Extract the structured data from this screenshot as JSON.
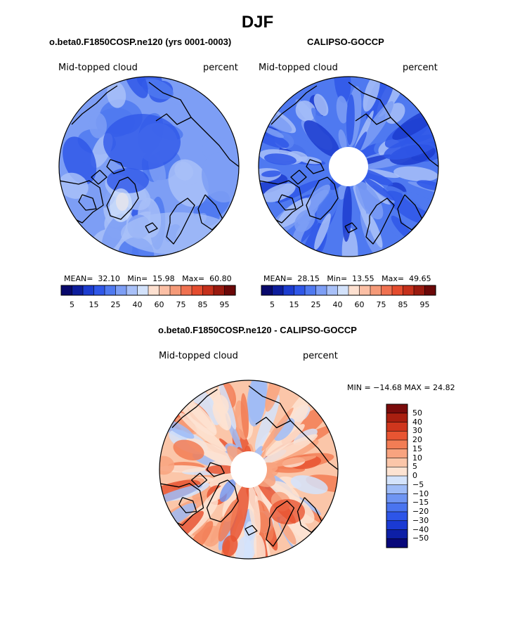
{
  "title": "DJF",
  "panels": [
    {
      "id": "model",
      "title": "o.beta0.F1850COSP.ne120 (yrs 0001-0003)",
      "left_label": "Mid-topped cloud",
      "right_label": "percent",
      "stats": {
        "mean_label": "MEAN=",
        "mean": "32.10",
        "min_label": "Min=",
        "min": "15.98",
        "max_label": "Max=",
        "max": "60.80"
      },
      "colorbar_ticks": [
        "5",
        "15",
        "25",
        "40",
        "60",
        "75",
        "85",
        "95"
      ]
    },
    {
      "id": "obs",
      "title": "CALIPSO-GOCCP",
      "left_label": "Mid-topped cloud",
      "right_label": "percent",
      "stats": {
        "mean_label": "MEAN=",
        "mean": "28.15",
        "min_label": "Min=",
        "min": "13.55",
        "max_label": "Max=",
        "max": "49.65"
      },
      "colorbar_ticks": [
        "5",
        "15",
        "25",
        "40",
        "60",
        "75",
        "85",
        "95"
      ]
    },
    {
      "id": "diff",
      "title": "o.beta0.F1850COSP.ne120 - CALIPSO-GOCCP",
      "left_label": "Mid-topped cloud",
      "right_label": "percent",
      "minmax_text": "MIN = −14.68 MAX =  24.82",
      "colorbar_ticks": [
        "50",
        "40",
        "30",
        "20",
        "15",
        "10",
        "5",
        "0",
        "−5",
        "−10",
        "−15",
        "−20",
        "−30",
        "−40",
        "−50"
      ]
    }
  ],
  "chart_data": [
    {
      "type": "heatmap",
      "projection": "north polar stereographic",
      "title": "o.beta0.F1850COSP.ne120 (yrs 0001-0003)",
      "variable": "Mid-topped cloud",
      "units": "percent",
      "mean": 32.1,
      "min": 15.98,
      "max": 60.8,
      "contour_levels": [
        5,
        10,
        15,
        20,
        25,
        30,
        40,
        50,
        60,
        70,
        75,
        80,
        85,
        90,
        95
      ],
      "colors": [
        "#08086b",
        "#0d1d9c",
        "#1c3ccf",
        "#2f57e8",
        "#4f79f0",
        "#7d9ef5",
        "#a8c0f8",
        "#d3e2fb",
        "#fde0d0",
        "#fbbfa5",
        "#f59a78",
        "#ef7150",
        "#e44c2e",
        "#c5301b",
        "#9a1a0f",
        "#6b0808"
      ]
    },
    {
      "type": "heatmap",
      "projection": "north polar stereographic",
      "title": "CALIPSO-GOCCP",
      "variable": "Mid-topped cloud",
      "units": "percent",
      "mean": 28.15,
      "min": 13.55,
      "max": 49.65,
      "contour_levels": [
        5,
        10,
        15,
        20,
        25,
        30,
        40,
        50,
        60,
        70,
        75,
        80,
        85,
        90,
        95
      ],
      "colors": [
        "#08086b",
        "#0d1d9c",
        "#1c3ccf",
        "#2f57e8",
        "#4f79f0",
        "#7d9ef5",
        "#a8c0f8",
        "#d3e2fb",
        "#fde0d0",
        "#fbbfa5",
        "#f59a78",
        "#ef7150",
        "#e44c2e",
        "#c5301b",
        "#9a1a0f",
        "#6b0808"
      ]
    },
    {
      "type": "heatmap",
      "projection": "north polar stereographic",
      "title": "o.beta0.F1850COSP.ne120 - CALIPSO-GOCCP",
      "variable": "Mid-topped cloud",
      "units": "percent",
      "min": -14.68,
      "max": 24.82,
      "contour_levels": [
        -50,
        -40,
        -30,
        -20,
        -15,
        -10,
        -5,
        0,
        5,
        10,
        15,
        20,
        30,
        40,
        50
      ],
      "colors": [
        "#08087a",
        "#0d1fa6",
        "#1a3ad3",
        "#2d55e8",
        "#4a74ef",
        "#6f95f3",
        "#9fbcf7",
        "#d4e3fb",
        "#fde3d2",
        "#fbc6a9",
        "#f8a37f",
        "#f27d55",
        "#e85532",
        "#cf361d",
        "#a91f10",
        "#7a0b0b"
      ]
    }
  ]
}
